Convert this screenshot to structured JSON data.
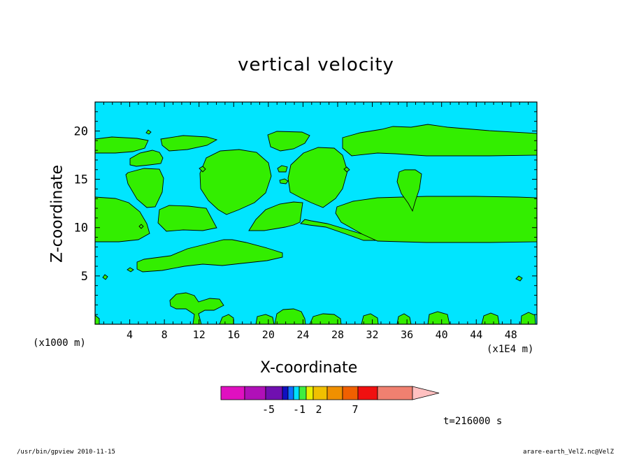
{
  "chart_data": {
    "type": "heatmap",
    "title": "vertical velocity",
    "xlabel": "X-coordinate",
    "ylabel": "Z-coordinate",
    "x_unit_note": "(x1000 m)",
    "x_scale_note": "(x1E4 m)",
    "xlim": [
      0,
      51
    ],
    "ylim": [
      0,
      23
    ],
    "x_ticks": [
      "4",
      "8",
      "12",
      "16",
      "20",
      "24",
      "28",
      "32",
      "36",
      "40",
      "44",
      "48"
    ],
    "x_tick_values": [
      4,
      8,
      12,
      16,
      20,
      24,
      28,
      32,
      36,
      40,
      44,
      48
    ],
    "y_ticks": [
      "5",
      "10",
      "15",
      "20"
    ],
    "y_tick_values": [
      5,
      10,
      15,
      20
    ],
    "background_color": "#00e5ff",
    "region_color": "#33ee00",
    "colorbar": {
      "colors": [
        "#e010c0",
        "#b010b8",
        "#7010b0",
        "#1010c0",
        "#1070ff",
        "#00e0ff",
        "#40ee40",
        "#e8f000",
        "#f0c000",
        "#f09000",
        "#f06000",
        "#f01010",
        "#f08070",
        "#ffc0c0"
      ],
      "labels": [
        "-5",
        "-1",
        "2",
        "7"
      ]
    },
    "timestamp": "t=216000 s"
  },
  "footer": {
    "left": "/usr/bin/gpview  2010-11-15",
    "right": "arare-earth_VelZ.nc@VelZ"
  }
}
